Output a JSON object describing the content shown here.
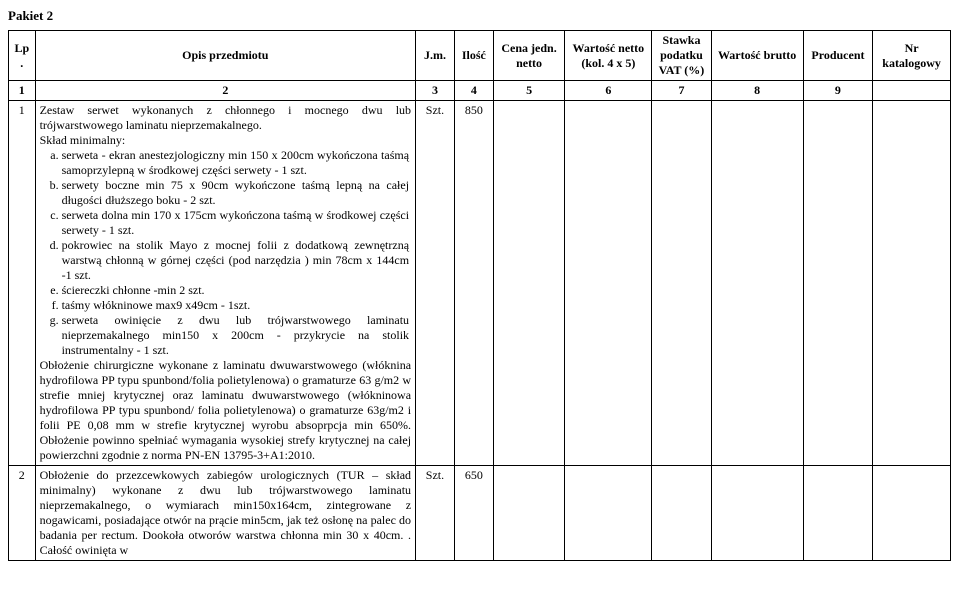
{
  "title": "Pakiet 2",
  "headers": {
    "lp": "Lp.",
    "opis": "Opis przedmiotu",
    "jm": "J.m.",
    "ilosc": "Ilość",
    "cena": "Cena jedn. netto",
    "wnetto": "Wartość netto (kol. 4 x 5)",
    "stawka": "Stawka podatku VAT (%)",
    "wbrutto": "Wartość brutto",
    "producent": "Producent",
    "nr": "Nr katalogowy"
  },
  "colnums": {
    "c1": "1",
    "c2": "2",
    "c3": "3",
    "c4": "4",
    "c5": "5",
    "c6": "6",
    "c7": "7",
    "c8": "8",
    "c9": "9"
  },
  "row1": {
    "lp": "1",
    "jm": "Szt.",
    "ilosc": "850",
    "lead": "Zestaw serwet  wykonanych z chłonnego i mocnego dwu lub trójwarstwowego laminatu nieprzemakalnego.",
    "sklad": "Skład minimalny:",
    "a": "serweta - ekran anestezjologiczny min 150 x 200cm wykończona taśmą samoprzylepną w środkowej części serwety - 1 szt.",
    "b": "serwety boczne min 75 x 90cm wykończone taśmą lepną na całej długości dłuższego boku - 2 szt.",
    "c": "serweta dolna min 170 x 175cm wykończona taśmą w środkowej części serwety - 1 szt.",
    "d": "pokrowiec na stolik Mayo z mocnej folii z dodatkową zewnętrzną warstwą chłonną w górnej części (pod narzędzia ) min 78cm x 144cm -1 szt.",
    "e": "ściereczki chłonne -min 2 szt.",
    "f": "taśmy włókninowe  max9 x49cm - 1szt.",
    "g": "serweta owinięcie z dwu lub trójwarstwowego laminatu nieprzemakalnego min150 x 200cm - przykrycie na stolik instrumentalny - 1 szt.",
    "tail": "Obłożenie chirurgiczne wykonane z laminatu dwuwarstwowego (włóknina hydrofilowa PP typu spunbond/folia polietylenowa) o gramaturze 63 g/m2 w strefie mniej krytycznej oraz laminatu dwuwarstwowego (włókninowa hydrofilowa PP typu spunbond/ folia polietylenowa) o gramaturze 63g/m2 i folii PE 0,08 mm w strefie krytycznej wyrobu absoprpcja min 650%. Obłożenie powinno spełniać wymagania wysokiej strefy krytycznej na całej powierzchni zgodnie z norma PN-EN 13795-3+A1:2010."
  },
  "row2": {
    "lp": "2",
    "jm": "Szt.",
    "ilosc": "650",
    "text": "Obłożenie do przezcewkowych zabiegów urologicznych (TUR – skład minimalny) wykonane z dwu lub trójwarstwowego laminatu  nieprzemakalnego, o wymiarach min150x164cm, zintegrowane z nogawicami, posiadające otwór na prącie min5cm, jak też osłonę na palec do badania per rectum. Dookoła otworów warstwa chłonna min 30 x 40cm. . Całość owinięta w"
  }
}
